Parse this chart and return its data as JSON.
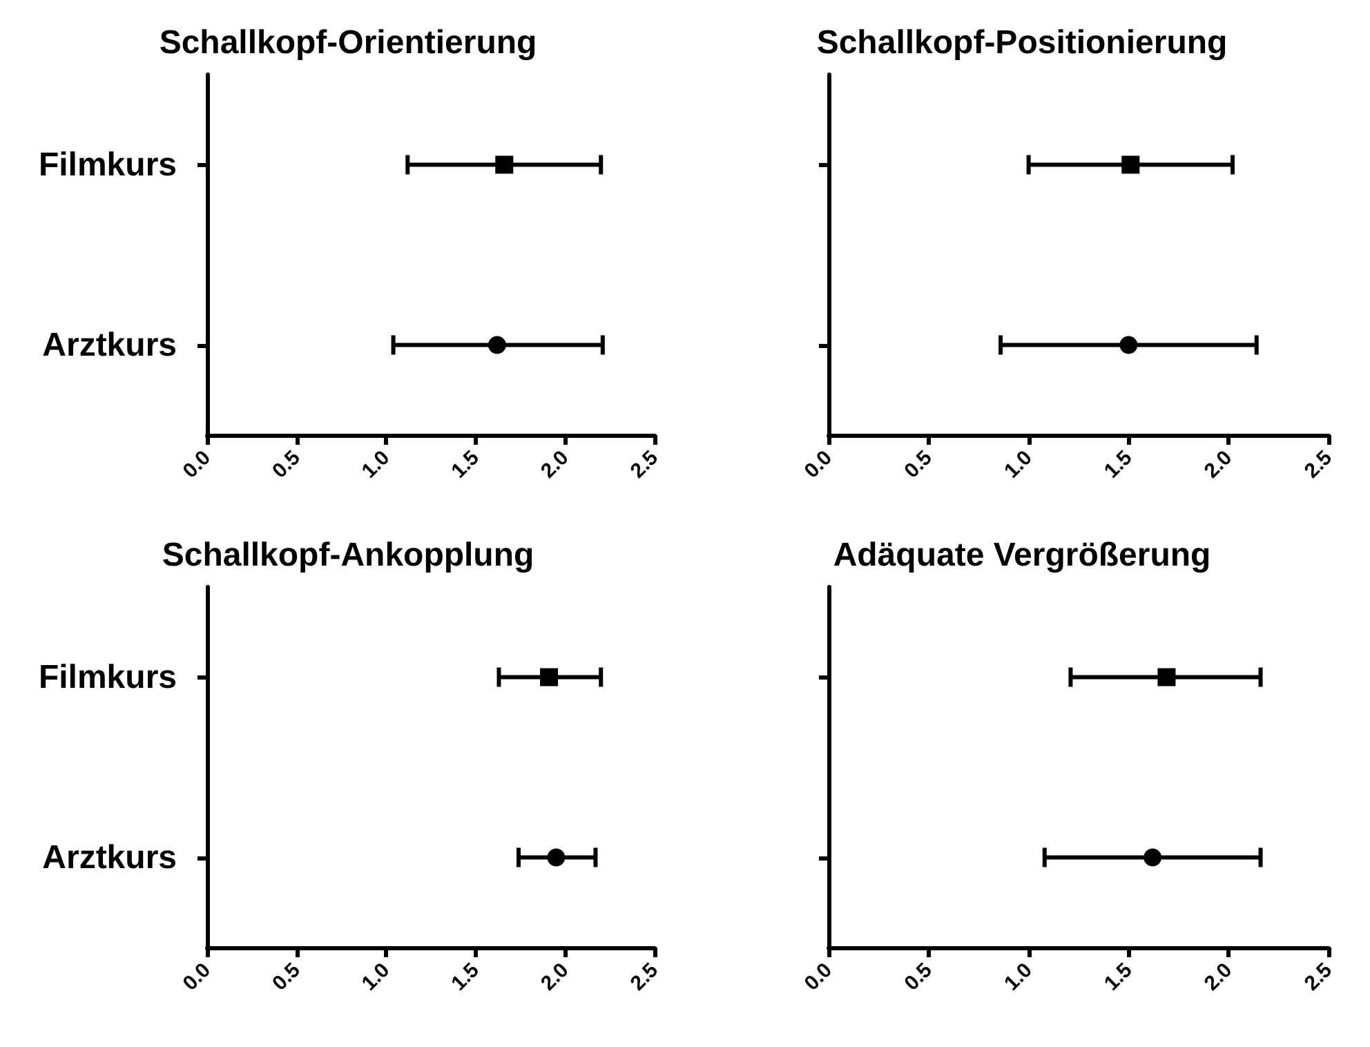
{
  "chart_data": [
    {
      "type": "scatter",
      "orientation": "horizontal",
      "title": "Schallkopf-Orientierung",
      "categories": [
        "Filmkurs",
        "Arztkurs"
      ],
      "xlim": [
        0,
        2.5
      ],
      "xticks": [
        {
          "value": 0,
          "label": "0.0"
        },
        {
          "value": 0.5,
          "label": "0.5"
        },
        {
          "value": 1,
          "label": "1.0"
        },
        {
          "value": 1.5,
          "label": "1.5"
        },
        {
          "value": 2,
          "label": "2.0"
        },
        {
          "value": 2.5,
          "label": "2.5"
        }
      ],
      "series": [
        {
          "color": "#000000",
          "marker": "square",
          "values": [
            1.66,
            null
          ],
          "errors": [
            [
              1.12,
              2.2
            ],
            null
          ]
        },
        {
          "color": "#000000",
          "marker": "circle",
          "values": [
            null,
            1.62
          ],
          "errors": [
            null,
            [
              1.04,
              2.21
            ]
          ]
        }
      ]
    },
    {
      "type": "scatter",
      "orientation": "horizontal",
      "title": "Schallkopf-Positionierung",
      "categories": [
        null,
        null
      ],
      "tick_labels": "x",
      "xlim": [
        0,
        2.5
      ],
      "xticks": [
        {
          "value": 0,
          "label": "0.0"
        },
        {
          "value": 0.5,
          "label": "0.5"
        },
        {
          "value": 1,
          "label": "1.0"
        },
        {
          "value": 1.5,
          "label": "1.5"
        },
        {
          "value": 2,
          "label": "2.0"
        },
        {
          "value": 2.5,
          "label": "2.5"
        }
      ],
      "series": [
        {
          "color": "#000000",
          "marker": "square",
          "values": [
            1.51,
            null
          ],
          "errors": [
            [
              1.0,
              2.02
            ],
            null
          ]
        },
        {
          "color": "#000000",
          "marker": "circle",
          "values": [
            null,
            1.5
          ],
          "errors": [
            null,
            [
              0.86,
              2.14
            ]
          ]
        }
      ]
    },
    {
      "type": "scatter",
      "orientation": "horizontal",
      "title": "Schallkopf-Ankopplung",
      "categories": [
        "Filmkurs",
        "Arztkurs"
      ],
      "xlim": [
        0,
        2.5
      ],
      "xticks": [
        {
          "value": 0,
          "label": "0.0"
        },
        {
          "value": 0.5,
          "label": "0.5"
        },
        {
          "value": 1,
          "label": "1.0"
        },
        {
          "value": 1.5,
          "label": "1.5"
        },
        {
          "value": 2,
          "label": "2.0"
        },
        {
          "value": 2.5,
          "label": "2.5"
        }
      ],
      "series": [
        {
          "color": "#000000",
          "marker": "square",
          "values": [
            1.91,
            null
          ],
          "errors": [
            [
              1.63,
              2.2
            ],
            null
          ]
        },
        {
          "color": "#000000",
          "marker": "circle",
          "values": [
            null,
            1.95
          ],
          "errors": [
            null,
            [
              1.74,
              2.17
            ]
          ]
        }
      ]
    },
    {
      "type": "scatter",
      "orientation": "horizontal",
      "title": "Adäquate Vergrößerung",
      "categories": [
        null,
        null
      ],
      "tick_labels": "x",
      "xlim": [
        0,
        2.5
      ],
      "xticks": [
        {
          "value": 0,
          "label": "0.0"
        },
        {
          "value": 0.5,
          "label": "0.5"
        },
        {
          "value": 1,
          "label": "1.0"
        },
        {
          "value": 1.5,
          "label": "1.5"
        },
        {
          "value": 2,
          "label": "2.0"
        },
        {
          "value": 2.5,
          "label": "2.5"
        }
      ],
      "series": [
        {
          "color": "#000000",
          "marker": "square",
          "values": [
            1.69,
            null
          ],
          "errors": [
            [
              1.21,
              2.16
            ],
            null
          ]
        },
        {
          "color": "#000000",
          "marker": "circle",
          "values": [
            null,
            1.62
          ],
          "errors": [
            null,
            [
              1.08,
              2.16
            ]
          ]
        }
      ]
    }
  ]
}
